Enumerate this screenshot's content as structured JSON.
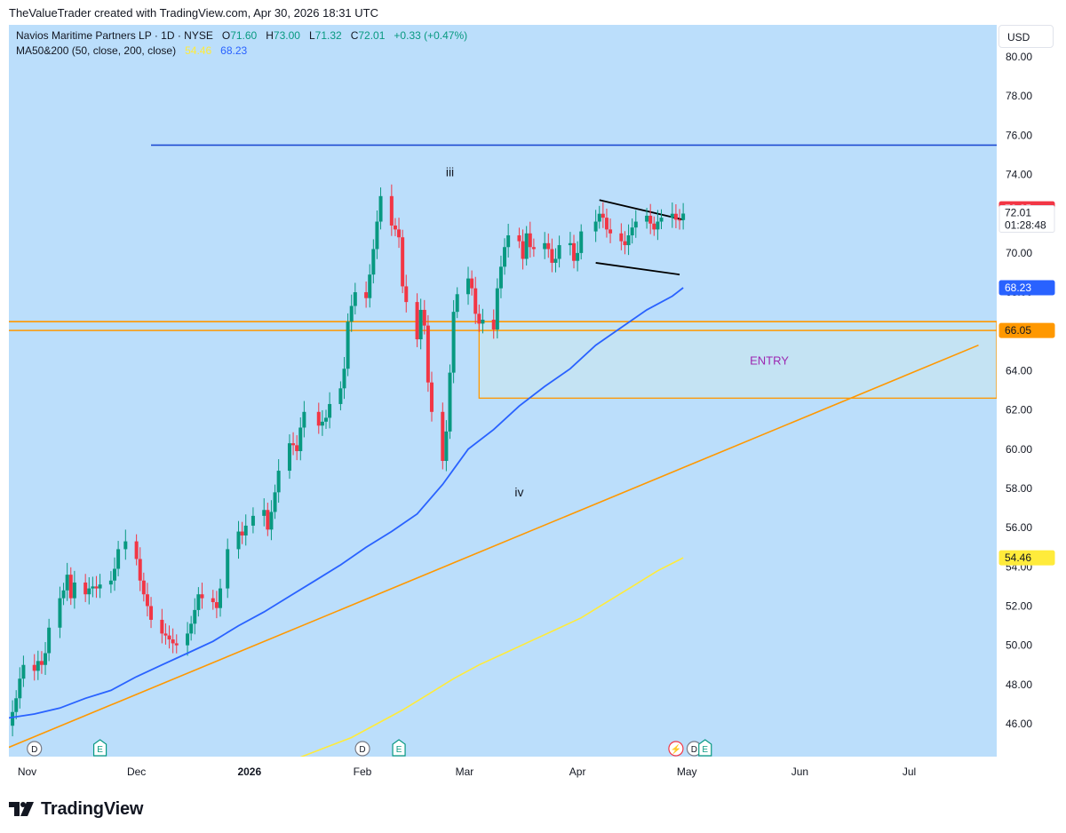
{
  "header": {
    "credit": "TheValueTrader created with TradingView.com, Apr 30, 2026 18:31 UTC"
  },
  "legend": {
    "symbol": "Navios Maritime Partners LP · 1D · NYSE",
    "o_key": "O",
    "o_val": "71.60",
    "h_key": "H",
    "h_val": "73.00",
    "l_key": "L",
    "l_val": "71.32",
    "c_key": "C",
    "c_val": "72.01",
    "change": "+0.33 (+0.47%)",
    "ma_label": "MA50&200 (50, close, 200, close)",
    "ma200_val": "54.46",
    "ma50_val": "68.23"
  },
  "currency_button": "USD",
  "footer": {
    "brand": "TradingView"
  },
  "colors": {
    "background": "#bbdefb",
    "up": "#089981",
    "down": "#f23645",
    "ma50": "#2962ff",
    "ma200": "#ffeb3b",
    "orange": "#ff9800",
    "resistance": "#1e4bd2",
    "entry_fill": "#c4e3f3",
    "entry_text": "#9c27b0"
  },
  "icons": {
    "dividend": "dividend-icon",
    "earnings": "earnings-icon",
    "split": "lightning-icon",
    "brand": "tradingview-logo-icon"
  },
  "chart_data": {
    "type": "candlestick",
    "y_axis": {
      "range": [
        44.5,
        81.0
      ],
      "ticks": [
        "80.00",
        "78.00",
        "76.00",
        "74.00",
        "72.00",
        "70.00",
        "68.00",
        "66.00",
        "64.00",
        "62.00",
        "60.00",
        "58.00",
        "56.00",
        "54.00",
        "52.00",
        "50.00",
        "48.00",
        "46.00"
      ]
    },
    "x_axis": {
      "range": [
        "2025-10-27",
        "2026-07-25"
      ],
      "labels": [
        {
          "date": "2025-11-01",
          "text": "Nov",
          "bold": false
        },
        {
          "date": "2025-12-01",
          "text": "Dec",
          "bold": false
        },
        {
          "date": "2026-01-01",
          "text": "2026",
          "bold": true
        },
        {
          "date": "2026-02-01",
          "text": "Feb",
          "bold": false
        },
        {
          "date": "2026-03-01",
          "text": "Mar",
          "bold": false
        },
        {
          "date": "2026-04-01",
          "text": "Apr",
          "bold": false
        },
        {
          "date": "2026-05-01",
          "text": "May",
          "bold": false
        },
        {
          "date": "2026-06-01",
          "text": "Jun",
          "bold": false
        },
        {
          "date": "2026-07-01",
          "text": "Jul",
          "bold": false
        }
      ]
    },
    "close_series": [
      [
        "2025-10-27",
        45.9
      ],
      [
        "2025-10-28",
        46.6
      ],
      [
        "2025-10-29",
        47.3
      ],
      [
        "2025-10-30",
        48.3
      ],
      [
        "2025-10-31",
        49.0
      ],
      [
        "2025-11-03",
        48.7
      ],
      [
        "2025-11-04",
        49.2
      ],
      [
        "2025-11-05",
        49.0
      ],
      [
        "2025-11-06",
        49.6
      ],
      [
        "2025-11-07",
        50.9
      ],
      [
        "2025-11-10",
        52.4
      ],
      [
        "2025-11-11",
        52.8
      ],
      [
        "2025-11-12",
        53.6
      ],
      [
        "2025-11-13",
        52.4
      ],
      [
        "2025-11-14",
        53.2
      ],
      [
        "2025-11-17",
        52.6
      ],
      [
        "2025-11-18",
        52.9
      ],
      [
        "2025-11-19",
        53.0
      ],
      [
        "2025-11-20",
        52.9
      ],
      [
        "2025-11-21",
        53.1
      ],
      [
        "2025-11-24",
        53.3
      ],
      [
        "2025-11-25",
        53.9
      ],
      [
        "2025-11-26",
        54.9
      ],
      [
        "2025-11-28",
        55.3
      ],
      [
        "2025-12-01",
        54.4
      ],
      [
        "2025-12-02",
        53.3
      ],
      [
        "2025-12-03",
        52.6
      ],
      [
        "2025-12-04",
        52.0
      ],
      [
        "2025-12-05",
        51.3
      ],
      [
        "2025-12-08",
        50.6
      ],
      [
        "2025-12-09",
        50.5
      ],
      [
        "2025-12-10",
        50.3
      ],
      [
        "2025-12-11",
        50.1
      ],
      [
        "2025-12-12",
        50.0
      ],
      [
        "2025-12-15",
        50.6
      ],
      [
        "2025-12-16",
        51.1
      ],
      [
        "2025-12-17",
        51.8
      ],
      [
        "2025-12-18",
        52.6
      ],
      [
        "2025-12-19",
        52.4
      ],
      [
        "2025-12-22",
        52.2
      ],
      [
        "2025-12-23",
        51.9
      ],
      [
        "2025-12-24",
        52.9
      ],
      [
        "2025-12-26",
        54.9
      ],
      [
        "2025-12-29",
        55.8
      ],
      [
        "2025-12-30",
        55.6
      ],
      [
        "2025-12-31",
        56.1
      ],
      [
        "2026-01-02",
        56.6
      ],
      [
        "2026-01-05",
        56.9
      ],
      [
        "2026-01-06",
        55.9
      ],
      [
        "2026-01-07",
        56.8
      ],
      [
        "2026-01-08",
        57.8
      ],
      [
        "2026-01-09",
        58.9
      ],
      [
        "2026-01-12",
        60.3
      ],
      [
        "2026-01-13",
        60.2
      ],
      [
        "2026-01-14",
        59.9
      ],
      [
        "2026-01-15",
        61.1
      ],
      [
        "2026-01-16",
        61.9
      ],
      [
        "2026-01-20",
        61.2
      ],
      [
        "2026-01-21",
        61.4
      ],
      [
        "2026-01-22",
        61.6
      ],
      [
        "2026-01-23",
        62.3
      ],
      [
        "2026-01-26",
        63.1
      ],
      [
        "2026-01-27",
        64.1
      ],
      [
        "2026-01-28",
        66.5
      ],
      [
        "2026-01-29",
        67.3
      ],
      [
        "2026-01-30",
        68.0
      ],
      [
        "2026-02-02",
        67.7
      ],
      [
        "2026-02-03",
        68.9
      ],
      [
        "2026-02-04",
        70.2
      ],
      [
        "2026-02-05",
        71.6
      ],
      [
        "2026-02-06",
        72.9
      ],
      [
        "2026-02-09",
        71.4
      ],
      [
        "2026-02-10",
        71.2
      ],
      [
        "2026-02-11",
        70.8
      ],
      [
        "2026-02-12",
        68.3
      ],
      [
        "2026-02-13",
        67.5
      ],
      [
        "2026-02-16",
        65.6
      ],
      [
        "2026-02-17",
        67.1
      ],
      [
        "2026-02-18",
        66.3
      ],
      [
        "2026-02-19",
        63.4
      ],
      [
        "2026-02-20",
        61.9
      ],
      [
        "2026-02-23",
        59.4
      ],
      [
        "2026-02-24",
        60.9
      ],
      [
        "2026-02-25",
        63.9
      ],
      [
        "2026-02-26",
        67.0
      ],
      [
        "2026-02-27",
        67.9
      ],
      [
        "2026-03-02",
        68.7
      ],
      [
        "2026-03-03",
        68.2
      ],
      [
        "2026-03-04",
        66.9
      ],
      [
        "2026-03-05",
        66.4
      ],
      [
        "2026-03-06",
        66.6
      ],
      [
        "2026-03-09",
        66.1
      ],
      [
        "2026-03-10",
        68.2
      ],
      [
        "2026-03-11",
        69.3
      ],
      [
        "2026-03-12",
        70.3
      ],
      [
        "2026-03-13",
        70.9
      ],
      [
        "2026-03-16",
        70.6
      ],
      [
        "2026-03-17",
        69.7
      ],
      [
        "2026-03-18",
        71.0
      ],
      [
        "2026-03-19",
        70.3
      ],
      [
        "2026-03-20",
        70.2
      ],
      [
        "2026-03-23",
        70.5
      ],
      [
        "2026-03-24",
        70.2
      ],
      [
        "2026-03-25",
        69.5
      ],
      [
        "2026-03-26",
        69.7
      ],
      [
        "2026-03-27",
        70.4
      ],
      [
        "2026-03-30",
        70.5
      ],
      [
        "2026-03-31",
        69.6
      ],
      [
        "2026-04-01",
        70.0
      ],
      [
        "2026-04-02",
        71.1
      ],
      [
        "2026-04-06",
        71.6
      ],
      [
        "2026-04-07",
        72.0
      ],
      [
        "2026-04-08",
        71.8
      ],
      [
        "2026-04-09",
        71.2
      ],
      [
        "2026-04-10",
        71.0
      ],
      [
        "2026-04-13",
        70.6
      ],
      [
        "2026-04-14",
        70.4
      ],
      [
        "2026-04-15",
        70.9
      ],
      [
        "2026-04-16",
        71.3
      ],
      [
        "2026-04-17",
        71.6
      ],
      [
        "2026-04-20",
        71.9
      ],
      [
        "2026-04-21",
        71.5
      ],
      [
        "2026-04-22",
        71.2
      ],
      [
        "2026-04-23",
        71.6
      ],
      [
        "2026-04-24",
        71.8
      ],
      [
        "2026-04-27",
        72.0
      ],
      [
        "2026-04-28",
        71.7
      ],
      [
        "2026-04-29",
        71.68
      ],
      [
        "2026-04-30",
        72.01
      ]
    ],
    "ma50_series": [
      [
        "2025-10-27",
        46.3
      ],
      [
        "2025-11-03",
        46.5
      ],
      [
        "2025-11-10",
        46.8
      ],
      [
        "2025-11-17",
        47.3
      ],
      [
        "2025-11-24",
        47.7
      ],
      [
        "2025-12-01",
        48.4
      ],
      [
        "2025-12-08",
        49.0
      ],
      [
        "2025-12-15",
        49.6
      ],
      [
        "2025-12-22",
        50.2
      ],
      [
        "2025-12-29",
        51.0
      ],
      [
        "2026-01-05",
        51.7
      ],
      [
        "2026-01-12",
        52.5
      ],
      [
        "2026-01-19",
        53.3
      ],
      [
        "2026-01-26",
        54.1
      ],
      [
        "2026-02-02",
        55.0
      ],
      [
        "2026-02-09",
        55.8
      ],
      [
        "2026-02-16",
        56.7
      ],
      [
        "2026-02-23",
        58.2
      ],
      [
        "2026-03-02",
        60.0
      ],
      [
        "2026-03-09",
        61.0
      ],
      [
        "2026-03-16",
        62.2
      ],
      [
        "2026-03-23",
        63.2
      ],
      [
        "2026-03-30",
        64.1
      ],
      [
        "2026-04-06",
        65.3
      ],
      [
        "2026-04-13",
        66.2
      ],
      [
        "2026-04-20",
        67.1
      ],
      [
        "2026-04-27",
        67.8
      ],
      [
        "2026-04-30",
        68.23
      ]
    ],
    "ma200_series": [
      [
        "2026-01-15",
        44.3
      ],
      [
        "2026-01-22",
        44.8
      ],
      [
        "2026-01-29",
        45.3
      ],
      [
        "2026-02-05",
        46.0
      ],
      [
        "2026-02-12",
        46.7
      ],
      [
        "2026-02-19",
        47.5
      ],
      [
        "2026-02-26",
        48.3
      ],
      [
        "2026-03-05",
        49.0
      ],
      [
        "2026-03-12",
        49.6
      ],
      [
        "2026-03-19",
        50.2
      ],
      [
        "2026-03-26",
        50.8
      ],
      [
        "2026-04-02",
        51.4
      ],
      [
        "2026-04-09",
        52.2
      ],
      [
        "2026-04-16",
        53.0
      ],
      [
        "2026-04-23",
        53.8
      ],
      [
        "2026-04-30",
        54.46
      ]
    ],
    "horizontal_lines": [
      {
        "name": "resistance",
        "price": 75.5,
        "start_date": "2025-12-05",
        "color": "#1e4bd2"
      },
      {
        "name": "entry-top",
        "price": 66.5,
        "start_date": "2025-10-27",
        "color": "#ff9800"
      },
      {
        "name": "entry-line",
        "price": 66.05,
        "start_date": "2025-10-27",
        "color": "#ff9800"
      }
    ],
    "entry_zone": {
      "top": 66.5,
      "bottom": 62.6,
      "start_date": "2026-03-05",
      "label": "ENTRY"
    },
    "trendlines": [
      {
        "name": "orange-trendline",
        "from": [
          "2025-10-27",
          44.8
        ],
        "to": [
          "2026-07-20",
          65.3
        ],
        "color": "#ff9800"
      },
      {
        "name": "flag-top",
        "from": [
          "2026-04-07",
          72.7
        ],
        "to": [
          "2026-04-30",
          71.7
        ],
        "color": "#000000"
      },
      {
        "name": "flag-bottom",
        "from": [
          "2026-04-06",
          69.5
        ],
        "to": [
          "2026-04-29",
          68.9
        ],
        "color": "#000000"
      }
    ],
    "annotations": [
      {
        "text": "iii",
        "date": "2026-02-25",
        "price": 73.9
      },
      {
        "text": "iv",
        "date": "2026-03-16",
        "price": 57.6
      }
    ],
    "price_tags": [
      {
        "name": "last-price-tag",
        "price": 72.25,
        "text": "72.25",
        "bg": "#f23645",
        "fg": "#ffffff"
      },
      {
        "name": "close-tag",
        "price": 72.01,
        "text": "72.01",
        "sub": "01:28:48",
        "bg": "#ffffff",
        "fg": "#131722"
      },
      {
        "name": "ma50-tag",
        "price": 68.23,
        "text": "68.23",
        "bg": "#2962ff",
        "fg": "#ffffff"
      },
      {
        "name": "entry-tag",
        "price": 66.05,
        "text": "66.05",
        "bg": "#ff9800",
        "fg": "#131722"
      },
      {
        "name": "ma200-tag",
        "price": 54.46,
        "text": "54.46",
        "bg": "#ffeb3b",
        "fg": "#131722"
      }
    ],
    "events": [
      {
        "type": "dividend",
        "date": "2025-11-03",
        "glyph": "D"
      },
      {
        "type": "earnings",
        "date": "2025-11-21",
        "glyph": "E"
      },
      {
        "type": "dividend",
        "date": "2026-02-01",
        "glyph": "D"
      },
      {
        "type": "earnings",
        "date": "2026-02-11",
        "glyph": "E"
      },
      {
        "type": "split",
        "date": "2026-04-28",
        "glyph": "⚡"
      },
      {
        "type": "dividend",
        "date": "2026-05-03",
        "glyph": "D"
      },
      {
        "type": "earnings",
        "date": "2026-05-06",
        "glyph": "E"
      }
    ]
  }
}
